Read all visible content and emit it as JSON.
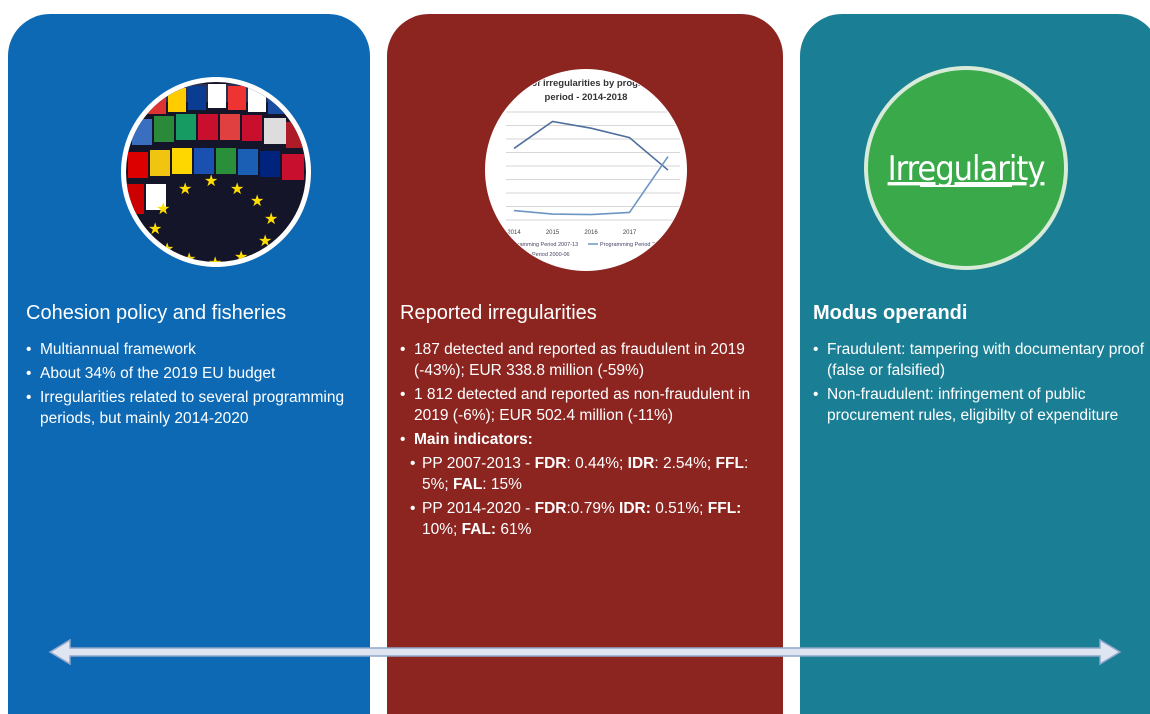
{
  "cards": [
    {
      "title": "Cohesion policy and fisheries",
      "title_bold": false,
      "color": "#0d69b4",
      "bullets": [
        {
          "level": 1,
          "segments": [
            {
              "text": "Multiannual framework"
            }
          ]
        },
        {
          "level": 1,
          "segments": [
            {
              "text": "About 34% of the 2019 EU budget"
            }
          ]
        },
        {
          "level": 1,
          "segments": [
            {
              "text": "Irregularities related to several programming periods, but mainly 2014-2020"
            }
          ]
        }
      ]
    },
    {
      "title": "Reported irregularities",
      "title_bold": false,
      "color": "#8c2420",
      "bullets": [
        {
          "level": 1,
          "segments": [
            {
              "text": "187 detected and reported as fraudulent in 2019 (-43%); EUR 338.8 million (-59%)"
            }
          ]
        },
        {
          "level": 1,
          "segments": [
            {
              "text": "1 812 detected and reported as non-fraudulent in 2019 (-6%); EUR 502.4 million (-11%)"
            }
          ]
        },
        {
          "level": 1,
          "segments": [
            {
              "text": "Main indicators:",
              "bold": true
            }
          ]
        },
        {
          "level": 2,
          "segments": [
            {
              "text": "PP 2007-2013 - "
            },
            {
              "text": "FDR",
              "bold": true
            },
            {
              "text": ": 0.44%; "
            },
            {
              "text": "IDR",
              "bold": true
            },
            {
              "text": ": 2.54%; "
            },
            {
              "text": "FFL",
              "bold": true
            },
            {
              "text": ": 5%; "
            },
            {
              "text": "FAL",
              "bold": true
            },
            {
              "text": ": 15%"
            }
          ]
        },
        {
          "level": 2,
          "segments": [
            {
              "text": "PP 2014-2020 - "
            },
            {
              "text": "FDR",
              "bold": true
            },
            {
              "text": ":0.79% "
            },
            {
              "text": "IDR:",
              "bold": true
            },
            {
              "text": " 0.51%; "
            },
            {
              "text": "FFL:",
              "bold": true
            },
            {
              "text": " 10%; "
            },
            {
              "text": "FAL:",
              "bold": true
            },
            {
              "text": " 61%"
            }
          ]
        }
      ]
    },
    {
      "title": "Modus operandi",
      "title_bold": true,
      "color": "#1a7f95",
      "bullets": [
        {
          "level": 1,
          "segments": [
            {
              "text": "Fraudulent: tampering with documentary proof (false or falsified)"
            }
          ]
        },
        {
          "level": 1,
          "segments": [
            {
              "text": "Non-fraudulent: infringement of public procurement rules, eligibilty of expenditure"
            }
          ]
        }
      ]
    }
  ],
  "chart_thumbnail": {
    "type": "line",
    "title_lines": [
      "r of irregularities by progra",
      "period - 2014-2018"
    ],
    "categories": [
      "2014",
      "2015",
      "2016",
      "2017",
      null
    ],
    "ylim": [
      -20,
      380
    ],
    "series": [
      {
        "name": "Programming Period 2007-13",
        "color": "#4f6f9c",
        "values": [
          245,
          345,
          320,
          285,
          165
        ]
      },
      {
        "name": "Programming Period 2014",
        "color": "#6d95c4",
        "values": [
          15,
          2,
          0,
          8,
          215
        ]
      },
      {
        "name": "Period 2000-06",
        "color": "#8aa4c8",
        "values": [
          null,
          null,
          null,
          null,
          null
        ]
      }
    ]
  },
  "irregularity_badge": {
    "label": "Irregularity"
  }
}
